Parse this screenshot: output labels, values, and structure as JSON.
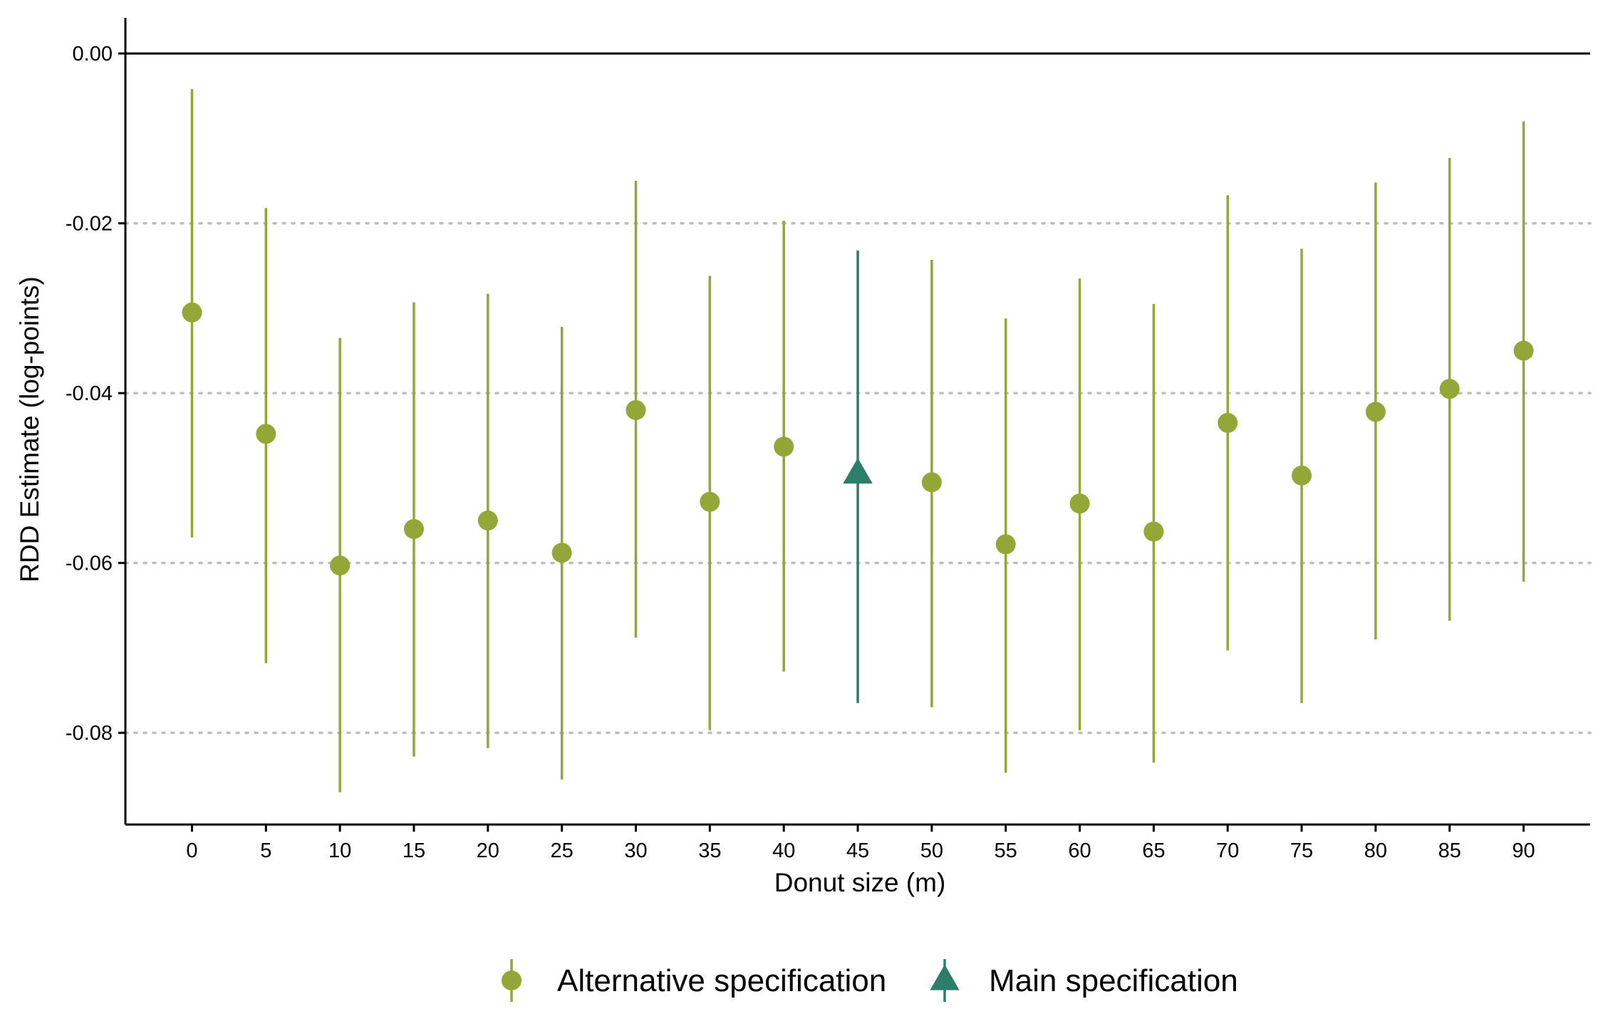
{
  "chart_data": {
    "type": "scatter",
    "title": "",
    "xlabel": "Donut size (m)",
    "ylabel": "RDD Estimate (log-points)",
    "xlim": [
      -4.5,
      94.5
    ],
    "ylim": [
      -0.0908,
      0.0042
    ],
    "x_ticks": [
      "0",
      "5",
      "10",
      "15",
      "20",
      "25",
      "30",
      "35",
      "40",
      "45",
      "50",
      "55",
      "60",
      "65",
      "70",
      "75",
      "80",
      "85",
      "90"
    ],
    "y_ticks": [
      "0.00",
      "-0.02",
      "-0.04",
      "-0.06",
      "-0.08"
    ],
    "y_tick_values": [
      0.0,
      -0.02,
      -0.04,
      -0.06,
      -0.08
    ],
    "reference_line_y": 0.0,
    "grid": "dotted horizontal",
    "legend_position": "bottom",
    "colors": {
      "alternative": "#93a738",
      "main": "#2e7d6b"
    },
    "series": [
      {
        "name": "Alternative specification",
        "marker": "circle",
        "points": [
          {
            "x": 0,
            "y": -0.0305,
            "lo": -0.057,
            "hi": -0.0042
          },
          {
            "x": 5,
            "y": -0.0448,
            "lo": -0.0718,
            "hi": -0.0182
          },
          {
            "x": 10,
            "y": -0.0603,
            "lo": -0.087,
            "hi": -0.0335
          },
          {
            "x": 15,
            "y": -0.056,
            "lo": -0.0828,
            "hi": -0.0293
          },
          {
            "x": 20,
            "y": -0.055,
            "lo": -0.0818,
            "hi": -0.0283
          },
          {
            "x": 25,
            "y": -0.0588,
            "lo": -0.0855,
            "hi": -0.0322
          },
          {
            "x": 30,
            "y": -0.042,
            "lo": -0.0688,
            "hi": -0.015
          },
          {
            "x": 35,
            "y": -0.0528,
            "lo": -0.0797,
            "hi": -0.0262
          },
          {
            "x": 40,
            "y": -0.0463,
            "lo": -0.0728,
            "hi": -0.0197
          },
          {
            "x": 50,
            "y": -0.0505,
            "lo": -0.077,
            "hi": -0.0243
          },
          {
            "x": 55,
            "y": -0.0578,
            "lo": -0.0847,
            "hi": -0.0312
          },
          {
            "x": 60,
            "y": -0.053,
            "lo": -0.0797,
            "hi": -0.0265
          },
          {
            "x": 65,
            "y": -0.0563,
            "lo": -0.0835,
            "hi": -0.0295
          },
          {
            "x": 70,
            "y": -0.0435,
            "lo": -0.0703,
            "hi": -0.0167
          },
          {
            "x": 75,
            "y": -0.0497,
            "lo": -0.0765,
            "hi": -0.023
          },
          {
            "x": 80,
            "y": -0.0422,
            "lo": -0.069,
            "hi": -0.0152
          },
          {
            "x": 85,
            "y": -0.0395,
            "lo": -0.0668,
            "hi": -0.0123
          },
          {
            "x": 90,
            "y": -0.035,
            "lo": -0.0622,
            "hi": -0.008
          }
        ]
      },
      {
        "name": "Main specification",
        "marker": "triangle",
        "points": [
          {
            "x": 45,
            "y": -0.0495,
            "lo": -0.0765,
            "hi": -0.0232
          }
        ]
      }
    ]
  }
}
